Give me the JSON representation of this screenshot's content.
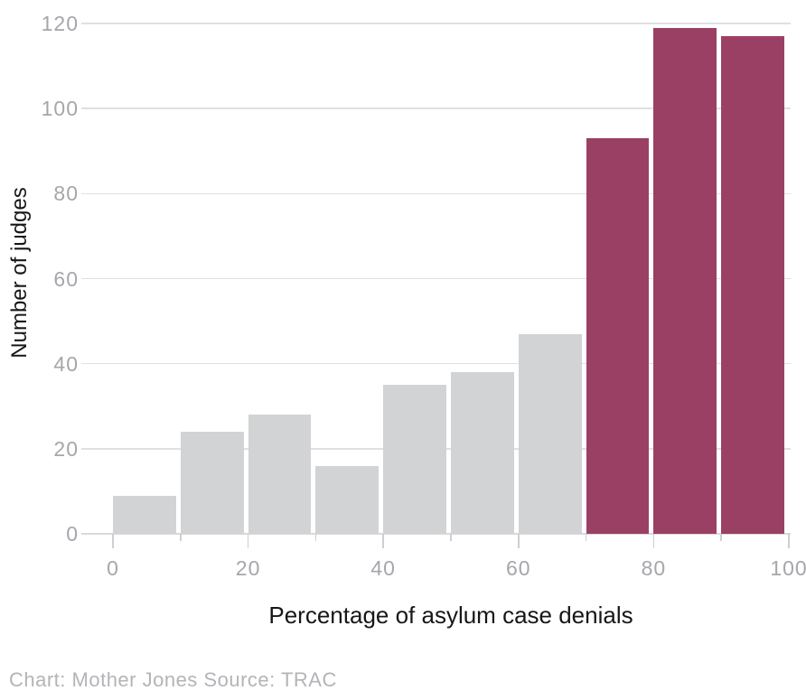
{
  "chart_data": {
    "type": "bar",
    "subtype": "histogram",
    "title": "",
    "xlabel": "Percentage of asylum case denials",
    "ylabel": "Number of judges",
    "caption": "Chart: Mother Jones Source: TRAC",
    "xlim": [
      0,
      100
    ],
    "ylim": [
      0,
      120
    ],
    "bin_width": 10,
    "bins": [
      {
        "start": 0,
        "end": 10,
        "count": 9,
        "highlighted": false
      },
      {
        "start": 10,
        "end": 20,
        "count": 24,
        "highlighted": false
      },
      {
        "start": 20,
        "end": 30,
        "count": 28,
        "highlighted": false
      },
      {
        "start": 30,
        "end": 40,
        "count": 16,
        "highlighted": false
      },
      {
        "start": 40,
        "end": 50,
        "count": 35,
        "highlighted": false
      },
      {
        "start": 50,
        "end": 60,
        "count": 38,
        "highlighted": false
      },
      {
        "start": 60,
        "end": 70,
        "count": 47,
        "highlighted": false
      },
      {
        "start": 70,
        "end": 80,
        "count": 93,
        "highlighted": true
      },
      {
        "start": 80,
        "end": 90,
        "count": 119,
        "highlighted": true
      },
      {
        "start": 90,
        "end": 100,
        "count": 117,
        "highlighted": true
      }
    ],
    "y_ticks": [
      0,
      20,
      40,
      60,
      80,
      100,
      120
    ],
    "x_major_ticks": [
      0,
      20,
      40,
      60,
      80,
      100
    ],
    "x_minor_ticks": [
      10,
      30,
      50,
      70,
      90
    ],
    "grid": "horizontal",
    "legend": "none",
    "colors": {
      "bar_default": "#d2d3d5",
      "bar_highlight": "#9b4065",
      "gridline": "#e0e0e2",
      "baseline": "#d9d9db",
      "tick_mark": "#cfcfd2",
      "tick_label": "#a6a6ab",
      "axis_title": "#17171a",
      "caption": "#b4b4b8"
    }
  }
}
